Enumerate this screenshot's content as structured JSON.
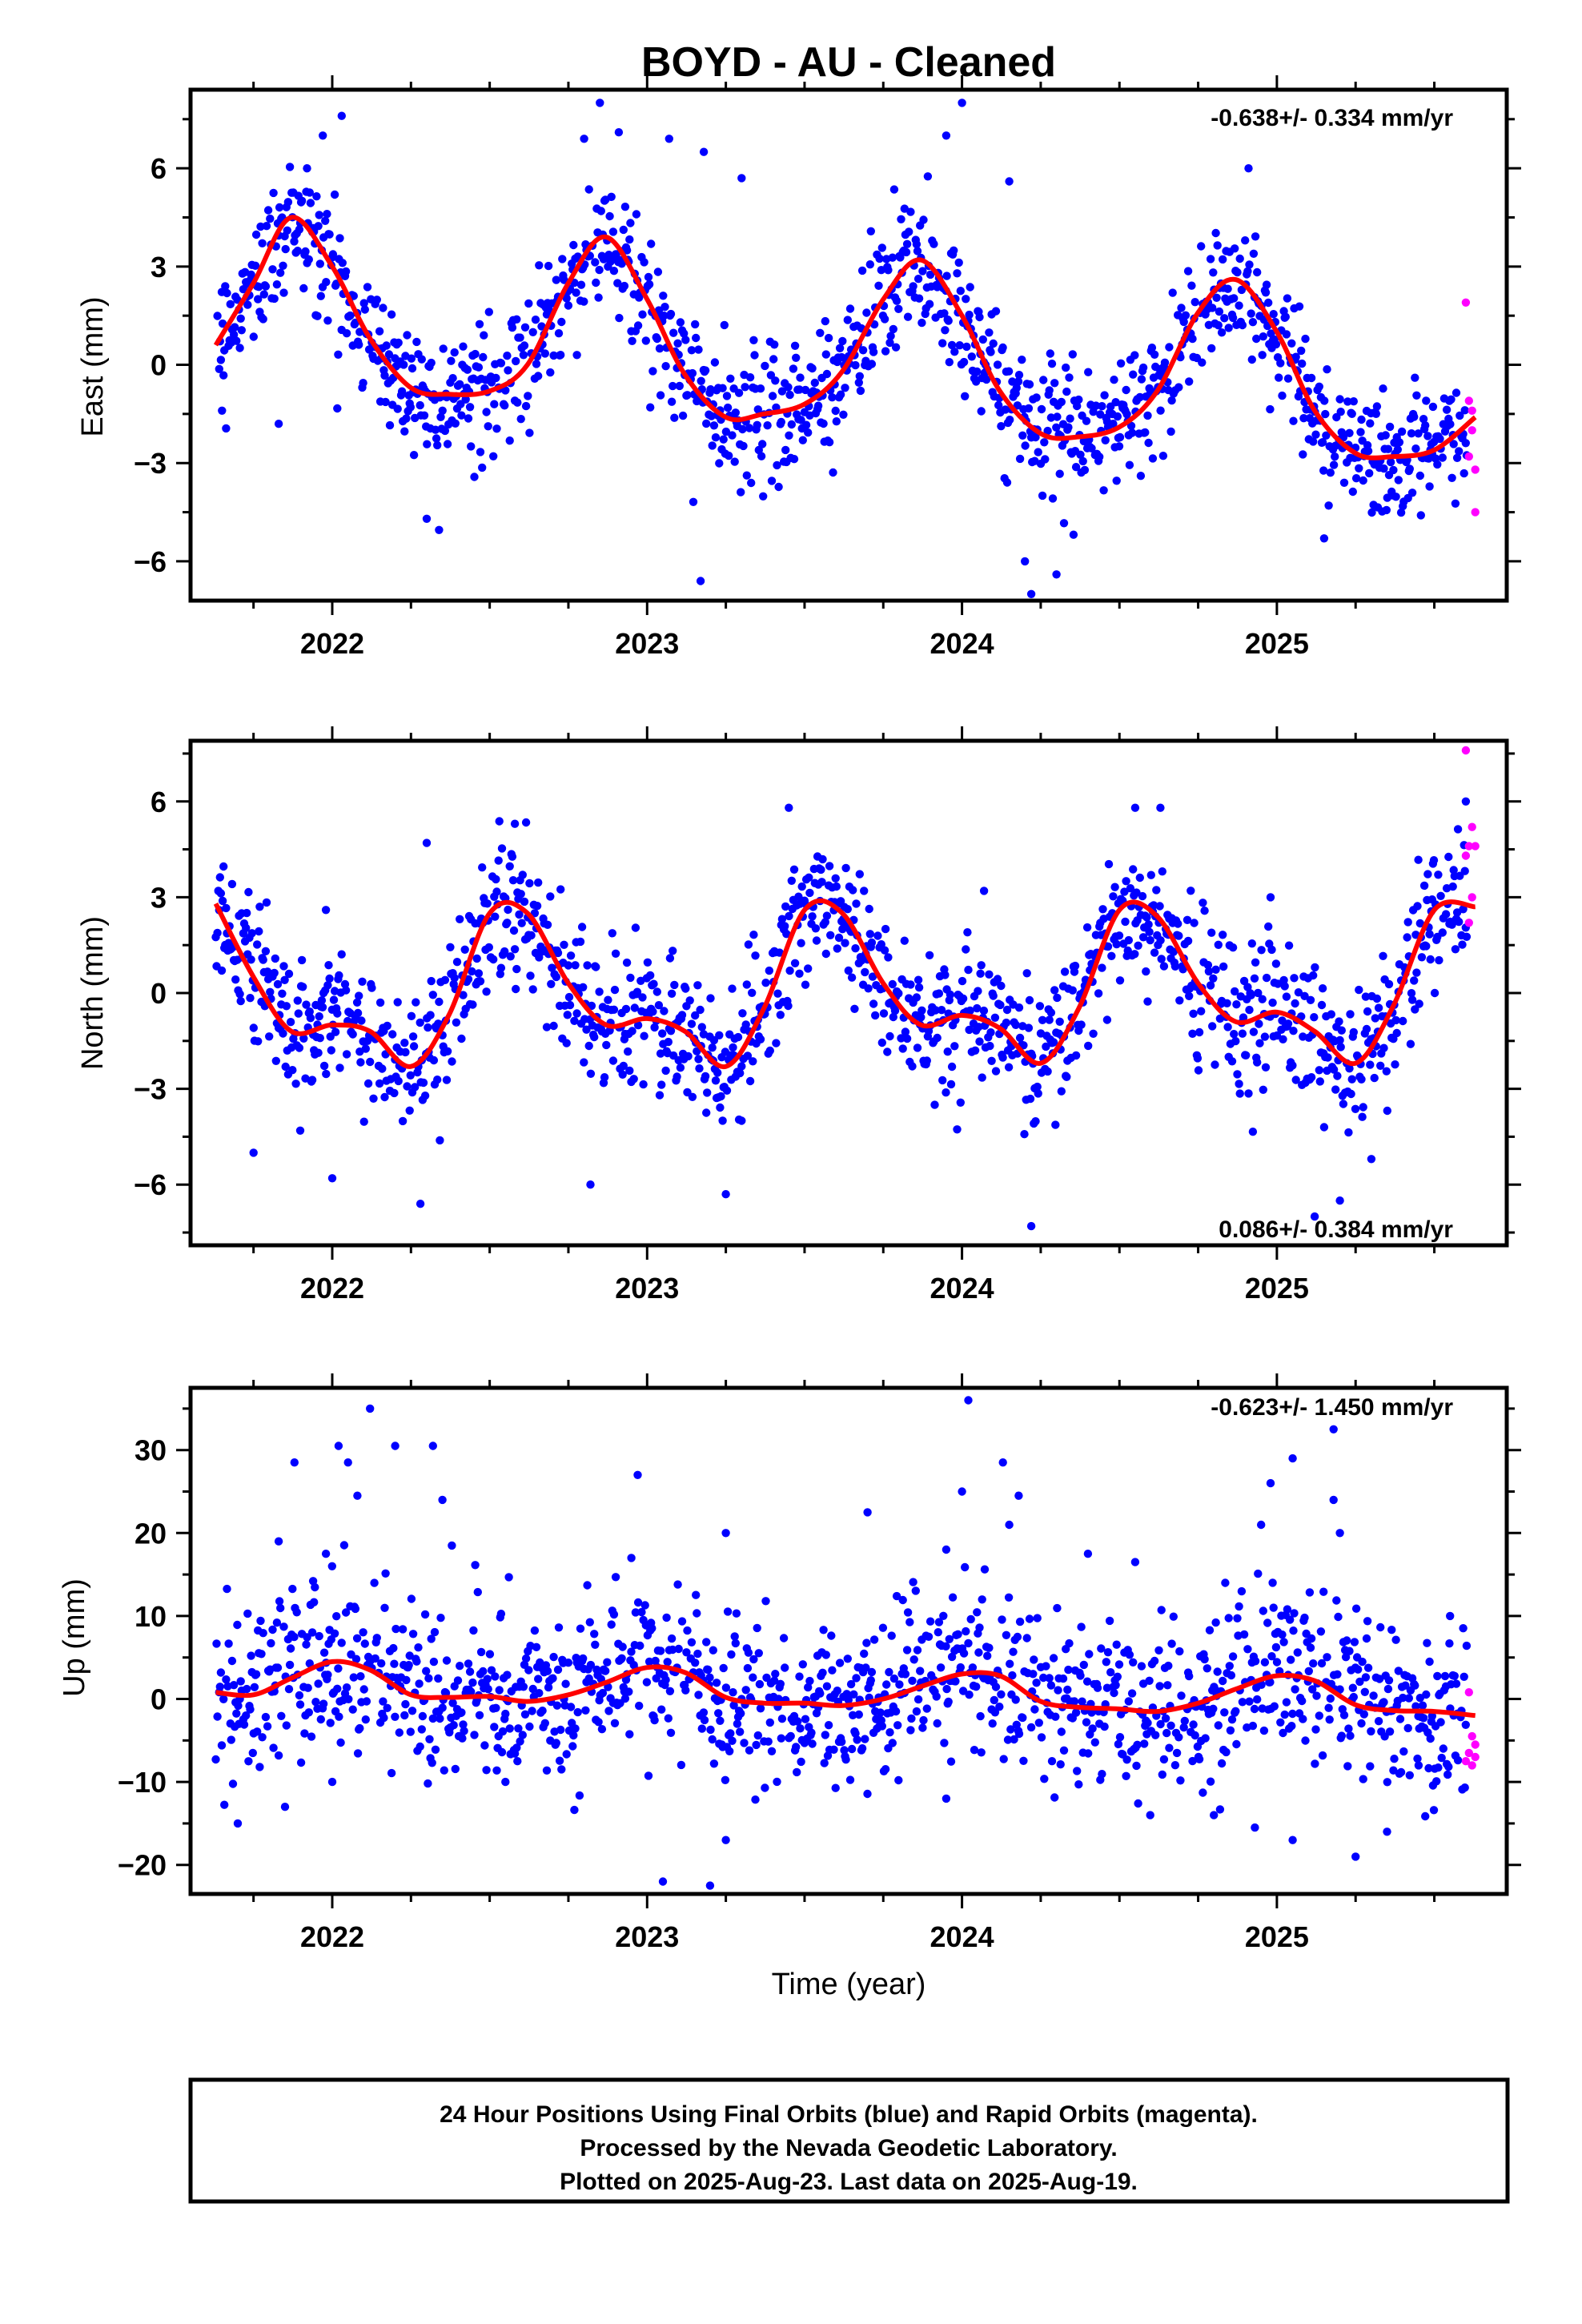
{
  "title": "BOYD  - AU - Cleaned",
  "footer": {
    "line1": "24 Hour Positions Using Final Orbits (blue) and Rapid Orbits (magenta).",
    "line2": "Processed by the Nevada Geodetic Laboratory.",
    "line3": "Plotted on 2025-Aug-23. Last data on 2025-Aug-19."
  },
  "colors": {
    "final_orbits": "#0000ff",
    "rapid_orbits": "#ff00ff",
    "model_fit": "#ff0000",
    "frame": "#000000"
  },
  "chart_data": [
    {
      "type": "scatter",
      "panel": "east",
      "ylabel": "East (mm)",
      "xlabel": "",
      "rate": "-0.638+/- 0.334 mm/yr",
      "rate_position": "top-right",
      "xlim": [
        2021.55,
        2025.73
      ],
      "ylim": [
        -7.2,
        8.4
      ],
      "x_ticks": [
        2022,
        2023,
        2024,
        2025
      ],
      "y_ticks": [
        -6,
        -3,
        0,
        3,
        6
      ],
      "grid": false,
      "noise_sd": 1.0,
      "fit_curve": [
        [
          2021.63,
          0.6
        ],
        [
          2021.75,
          2.5
        ],
        [
          2021.87,
          4.5
        ],
        [
          2022.0,
          3.0
        ],
        [
          2022.12,
          0.8
        ],
        [
          2022.25,
          -0.7
        ],
        [
          2022.37,
          -0.9
        ],
        [
          2022.5,
          -0.8
        ],
        [
          2022.62,
          0.0
        ],
        [
          2022.75,
          2.5
        ],
        [
          2022.87,
          3.9
        ],
        [
          2023.0,
          2.0
        ],
        [
          2023.12,
          -0.3
        ],
        [
          2023.25,
          -1.6
        ],
        [
          2023.37,
          -1.5
        ],
        [
          2023.5,
          -1.2
        ],
        [
          2023.62,
          -0.2
        ],
        [
          2023.75,
          2.0
        ],
        [
          2023.87,
          3.2
        ],
        [
          2024.0,
          1.5
        ],
        [
          2024.12,
          -0.8
        ],
        [
          2024.25,
          -2.1
        ],
        [
          2024.37,
          -2.2
        ],
        [
          2024.5,
          -1.9
        ],
        [
          2024.62,
          -0.8
        ],
        [
          2024.75,
          1.6
        ],
        [
          2024.87,
          2.6
        ],
        [
          2025.0,
          1.0
        ],
        [
          2025.12,
          -1.4
        ],
        [
          2025.25,
          -2.7
        ],
        [
          2025.37,
          -2.8
        ],
        [
          2025.5,
          -2.6
        ],
        [
          2025.63,
          -1.6
        ]
      ],
      "outliers": [
        [
          2021.92,
          6.0
        ],
        [
          2021.97,
          7.0
        ],
        [
          2022.03,
          7.6
        ],
        [
          2022.8,
          6.9
        ],
        [
          2022.91,
          7.1
        ],
        [
          2023.07,
          6.9
        ],
        [
          2023.18,
          6.5
        ],
        [
          2023.3,
          5.7
        ],
        [
          2023.95,
          7.0
        ],
        [
          2024.0,
          8.0
        ],
        [
          2024.15,
          5.6
        ],
        [
          2024.2,
          -6.0
        ],
        [
          2024.22,
          -7.0
        ],
        [
          2024.91,
          6.0
        ],
        [
          2023.17,
          -6.6
        ],
        [
          2021.83,
          -1.8
        ],
        [
          2022.3,
          -4.7
        ],
        [
          2024.3,
          -6.4
        ],
        [
          2025.15,
          -5.3
        ],
        [
          2021.65,
          -1.4
        ],
        [
          2022.85,
          8.0
        ]
      ],
      "rapid_points": [
        [
          2025.6,
          1.9
        ],
        [
          2025.61,
          -1.1
        ],
        [
          2025.62,
          -1.4
        ],
        [
          2025.62,
          -2.0
        ],
        [
          2025.61,
          -2.8
        ],
        [
          2025.63,
          -3.2
        ],
        [
          2025.63,
          -4.5
        ]
      ]
    },
    {
      "type": "scatter",
      "panel": "north",
      "ylabel": "North (mm)",
      "xlabel": "",
      "rate": "0.086+/- 0.384 mm/yr",
      "rate_position": "bottom-right",
      "xlim": [
        2021.55,
        2025.73
      ],
      "ylim": [
        -7.9,
        7.9
      ],
      "x_ticks": [
        2022,
        2023,
        2024,
        2025
      ],
      "y_ticks": [
        -6,
        -3,
        0,
        3,
        6
      ],
      "grid": false,
      "noise_sd": 1.1,
      "fit_curve": [
        [
          2021.63,
          2.8
        ],
        [
          2021.75,
          0.5
        ],
        [
          2021.87,
          -1.2
        ],
        [
          2022.0,
          -1.0
        ],
        [
          2022.12,
          -1.2
        ],
        [
          2022.25,
          -2.3
        ],
        [
          2022.37,
          -0.7
        ],
        [
          2022.5,
          2.5
        ],
        [
          2022.62,
          2.5
        ],
        [
          2022.75,
          0.3
        ],
        [
          2022.87,
          -1.0
        ],
        [
          2023.0,
          -0.8
        ],
        [
          2023.12,
          -1.2
        ],
        [
          2023.25,
          -2.3
        ],
        [
          2023.37,
          -0.5
        ],
        [
          2023.5,
          2.6
        ],
        [
          2023.62,
          2.5
        ],
        [
          2023.75,
          0.3
        ],
        [
          2023.87,
          -1.0
        ],
        [
          2024.0,
          -0.7
        ],
        [
          2024.12,
          -1.1
        ],
        [
          2024.25,
          -2.2
        ],
        [
          2024.37,
          -0.5
        ],
        [
          2024.5,
          2.6
        ],
        [
          2024.62,
          2.4
        ],
        [
          2024.75,
          0.3
        ],
        [
          2024.87,
          -0.9
        ],
        [
          2025.0,
          -0.6
        ],
        [
          2025.12,
          -1.2
        ],
        [
          2025.25,
          -2.2
        ],
        [
          2025.37,
          -0.4
        ],
        [
          2025.5,
          2.6
        ],
        [
          2025.63,
          2.7
        ]
      ],
      "outliers": [
        [
          2021.98,
          2.6
        ],
        [
          2022.28,
          -6.6
        ],
        [
          2022.82,
          -6.0
        ],
        [
          2023.25,
          -6.3
        ],
        [
          2023.3,
          -4.0
        ],
        [
          2023.45,
          5.8
        ],
        [
          2024.07,
          3.2
        ],
        [
          2024.22,
          -7.3
        ],
        [
          2024.55,
          5.8
        ],
        [
          2024.63,
          5.8
        ],
        [
          2024.98,
          3.0
        ],
        [
          2025.12,
          -7.0
        ],
        [
          2025.2,
          -6.5
        ],
        [
          2025.6,
          6.0
        ],
        [
          2021.75,
          -5.0
        ],
        [
          2022.58,
          5.3
        ],
        [
          2022.3,
          4.7
        ],
        [
          2025.15,
          -4.2
        ],
        [
          2022.0,
          -5.8
        ],
        [
          2025.3,
          -5.2
        ]
      ],
      "rapid_points": [
        [
          2025.6,
          7.6
        ],
        [
          2025.62,
          5.2
        ],
        [
          2025.61,
          4.6
        ],
        [
          2025.63,
          4.6
        ],
        [
          2025.6,
          4.3
        ],
        [
          2025.62,
          3.0
        ],
        [
          2025.61,
          2.2
        ]
      ]
    },
    {
      "type": "scatter",
      "panel": "up",
      "ylabel": "Up (mm)",
      "xlabel": "Time (year)",
      "rate": "-0.623+/- 1.450 mm/yr",
      "rate_position": "top-right",
      "xlim": [
        2021.55,
        2025.73
      ],
      "ylim": [
        -23.5,
        37.5
      ],
      "x_ticks": [
        2022,
        2023,
        2024,
        2025
      ],
      "y_ticks": [
        -20,
        -10,
        0,
        10,
        20,
        30
      ],
      "grid": false,
      "noise_sd": 5.0,
      "fit_curve": [
        [
          2021.63,
          0.8
        ],
        [
          2021.75,
          0.5
        ],
        [
          2021.87,
          2.5
        ],
        [
          2022.0,
          4.5
        ],
        [
          2022.12,
          3.5
        ],
        [
          2022.25,
          0.5
        ],
        [
          2022.37,
          0.2
        ],
        [
          2022.5,
          0.3
        ],
        [
          2022.62,
          -0.3
        ],
        [
          2022.75,
          0.5
        ],
        [
          2022.87,
          2.0
        ],
        [
          2023.0,
          3.8
        ],
        [
          2023.12,
          3.2
        ],
        [
          2023.25,
          0.2
        ],
        [
          2023.37,
          -0.5
        ],
        [
          2023.5,
          -0.5
        ],
        [
          2023.62,
          -0.8
        ],
        [
          2023.75,
          0.0
        ],
        [
          2023.87,
          1.5
        ],
        [
          2024.0,
          3.0
        ],
        [
          2024.12,
          2.8
        ],
        [
          2024.25,
          -0.3
        ],
        [
          2024.37,
          -1.0
        ],
        [
          2024.5,
          -1.2
        ],
        [
          2024.62,
          -1.5
        ],
        [
          2024.75,
          -0.5
        ],
        [
          2024.87,
          1.2
        ],
        [
          2025.0,
          2.8
        ],
        [
          2025.12,
          2.2
        ],
        [
          2025.25,
          -0.7
        ],
        [
          2025.37,
          -1.4
        ],
        [
          2025.5,
          -1.5
        ],
        [
          2025.63,
          -2.0
        ]
      ],
      "outliers": [
        [
          2021.88,
          28.5
        ],
        [
          2021.98,
          17.5
        ],
        [
          2022.02,
          30.5
        ],
        [
          2022.05,
          28.5
        ],
        [
          2022.08,
          24.5
        ],
        [
          2022.12,
          35.0
        ],
        [
          2022.2,
          30.5
        ],
        [
          2022.32,
          30.5
        ],
        [
          2022.35,
          24.0
        ],
        [
          2022.38,
          18.5
        ],
        [
          2021.83,
          19.0
        ],
        [
          2021.7,
          -15.0
        ],
        [
          2021.85,
          -13.0
        ],
        [
          2022.0,
          -10.0
        ],
        [
          2022.97,
          27.0
        ],
        [
          2022.95,
          17.0
        ],
        [
          2023.05,
          -22.0
        ],
        [
          2023.2,
          -22.5
        ],
        [
          2023.25,
          20.0
        ],
        [
          2023.25,
          -17.0
        ],
        [
          2023.7,
          22.5
        ],
        [
          2023.95,
          18.0
        ],
        [
          2024.02,
          36.0
        ],
        [
          2024.0,
          25.0
        ],
        [
          2024.13,
          28.5
        ],
        [
          2024.18,
          24.5
        ],
        [
          2024.15,
          21.0
        ],
        [
          2024.4,
          17.5
        ],
        [
          2024.55,
          16.5
        ],
        [
          2024.8,
          -14.0
        ],
        [
          2024.95,
          21.0
        ],
        [
          2024.98,
          26.0
        ],
        [
          2025.05,
          29.0
        ],
        [
          2025.05,
          -17.0
        ],
        [
          2025.18,
          32.5
        ],
        [
          2025.18,
          24.0
        ],
        [
          2025.2,
          20.0
        ],
        [
          2025.25,
          -19.0
        ],
        [
          2025.35,
          -16.0
        ],
        [
          2025.45,
          -8.0
        ],
        [
          2025.55,
          10.0
        ],
        [
          2024.93,
          -15.5
        ],
        [
          2023.95,
          -12.0
        ],
        [
          2022.55,
          -10.0
        ]
      ],
      "rapid_points": [
        [
          2025.61,
          0.8
        ],
        [
          2025.62,
          -4.5
        ],
        [
          2025.63,
          -5.5
        ],
        [
          2025.61,
          -6.5
        ],
        [
          2025.6,
          -7.5
        ],
        [
          2025.62,
          -8.0
        ],
        [
          2025.63,
          -7.0
        ]
      ]
    }
  ]
}
